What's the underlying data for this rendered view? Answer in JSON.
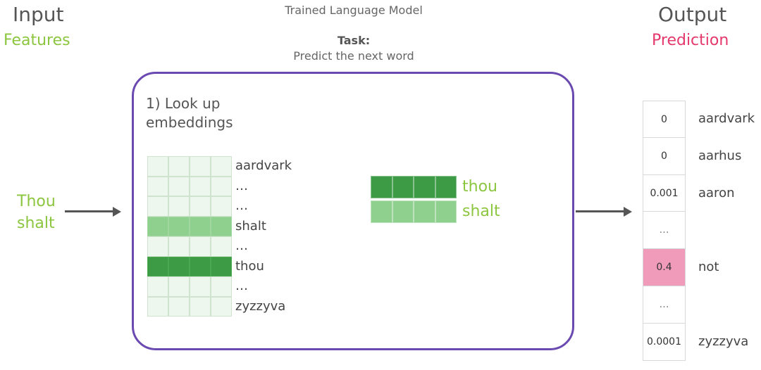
{
  "header": {
    "input_title": "Input",
    "input_subtitle": "Features",
    "output_title": "Output",
    "output_subtitle": "Prediction",
    "model_title": "Trained Language Model",
    "task_label": "Task:",
    "task_text": "Predict the next word"
  },
  "input": {
    "words": [
      "Thou",
      "shalt"
    ]
  },
  "model": {
    "step_label_line1": "1) Look up",
    "step_label_line2": "embeddings",
    "vocab": [
      {
        "word": "aardvark",
        "shade": "none"
      },
      {
        "word": "…",
        "shade": "none"
      },
      {
        "word": "…",
        "shade": "none"
      },
      {
        "word": "shalt",
        "shade": "light"
      },
      {
        "word": "…",
        "shade": "none"
      },
      {
        "word": "thou",
        "shade": "dark"
      },
      {
        "word": "…",
        "shade": "none"
      },
      {
        "word": "zyzzyva",
        "shade": "none"
      }
    ],
    "selected": [
      {
        "word": "thou",
        "shade": "dark"
      },
      {
        "word": "shalt",
        "shade": "light"
      }
    ]
  },
  "output": {
    "rows": [
      {
        "value": "0",
        "word": "aardvark"
      },
      {
        "value": "0",
        "word": "aarhus"
      },
      {
        "value": "0.001",
        "word": "aaron"
      },
      {
        "value": "…",
        "word": ""
      },
      {
        "value": "0.4",
        "word": "not",
        "highlight": true
      },
      {
        "value": "…",
        "word": ""
      },
      {
        "value": "0.0001",
        "word": "zyzzyva"
      }
    ]
  },
  "colors": {
    "green": "#8cc63f",
    "dark_green": "#3d9a45",
    "light_green": "#8fd08f",
    "pink_text": "#e5386c",
    "pink_fill": "#f19bbb",
    "box_border": "#6a4ab0"
  }
}
